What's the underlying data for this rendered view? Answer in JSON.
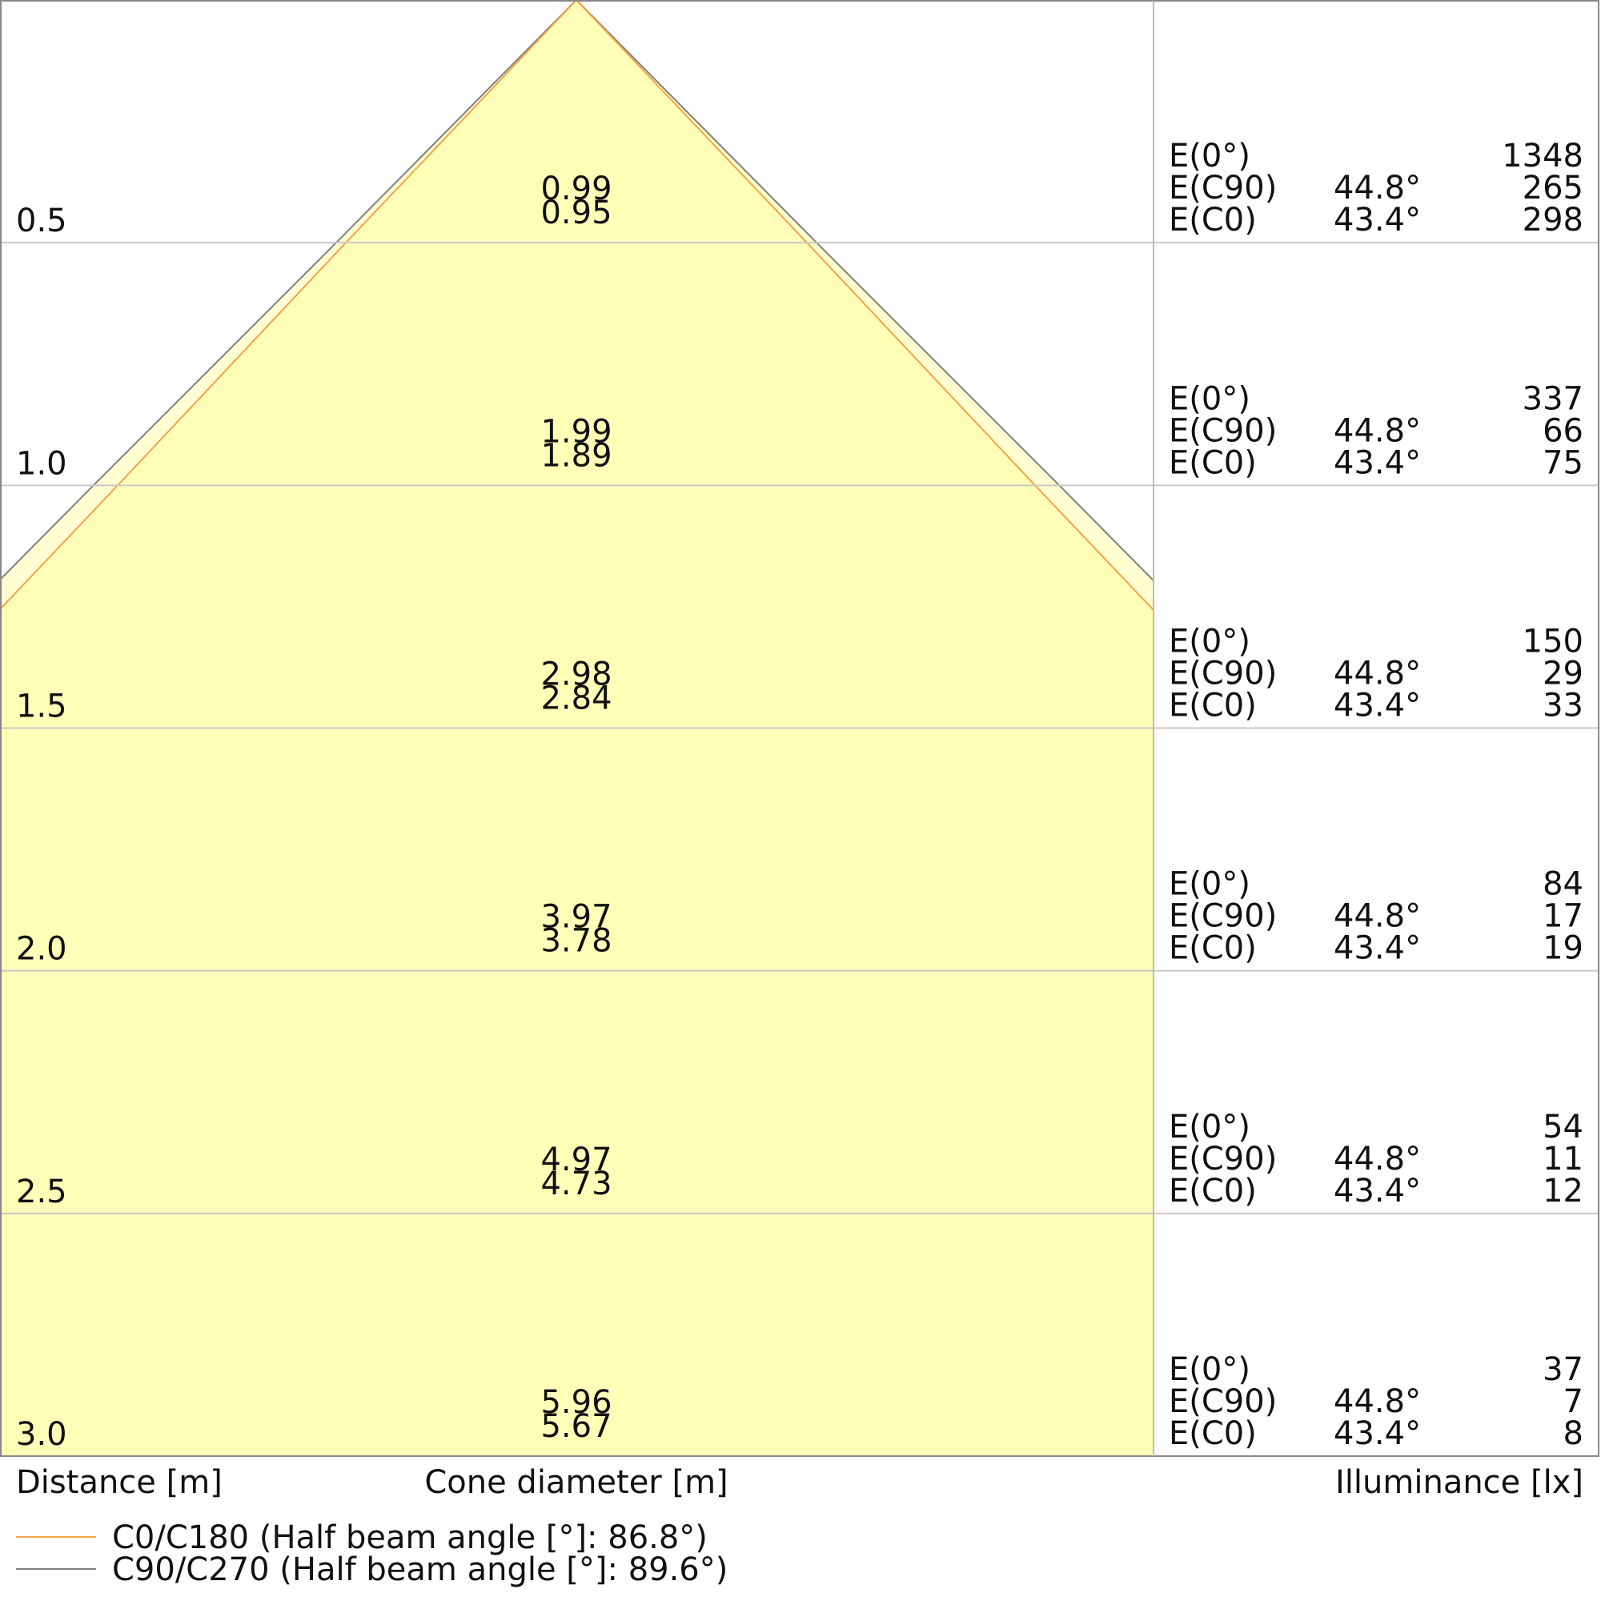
{
  "rows": [
    {
      "distance": "0.5",
      "diameters": [
        "0.99",
        "0.95"
      ],
      "illuminance": [
        {
          "label": "E(0°)",
          "value": "1348"
        },
        {
          "label": "E(C90)",
          "angle": "44.8°",
          "value": "265"
        },
        {
          "label": "E(C0)",
          "angle": "43.4°",
          "value": "298"
        }
      ]
    },
    {
      "distance": "1.0",
      "diameters": [
        "1.99",
        "1.89"
      ],
      "illuminance": [
        {
          "label": "E(0°)",
          "value": "337"
        },
        {
          "label": "E(C90)",
          "angle": "44.8°",
          "value": "66"
        },
        {
          "label": "E(C0)",
          "angle": "43.4°",
          "value": "75"
        }
      ]
    },
    {
      "distance": "1.5",
      "diameters": [
        "2.98",
        "2.84"
      ],
      "illuminance": [
        {
          "label": "E(0°)",
          "value": "150"
        },
        {
          "label": "E(C90)",
          "angle": "44.8°",
          "value": "29"
        },
        {
          "label": "E(C0)",
          "angle": "43.4°",
          "value": "33"
        }
      ]
    },
    {
      "distance": "2.0",
      "diameters": [
        "3.97",
        "3.78"
      ],
      "illuminance": [
        {
          "label": "E(0°)",
          "value": "84"
        },
        {
          "label": "E(C90)",
          "angle": "44.8°",
          "value": "17"
        },
        {
          "label": "E(C0)",
          "angle": "43.4°",
          "value": "19"
        }
      ]
    },
    {
      "distance": "2.5",
      "diameters": [
        "4.97",
        "4.73"
      ],
      "illuminance": [
        {
          "label": "E(0°)",
          "value": "54"
        },
        {
          "label": "E(C90)",
          "angle": "44.8°",
          "value": "11"
        },
        {
          "label": "E(C0)",
          "angle": "43.4°",
          "value": "12"
        }
      ]
    },
    {
      "distance": "3.0",
      "diameters": [
        "5.96",
        "5.67"
      ],
      "illuminance": [
        {
          "label": "E(0°)",
          "value": "37"
        },
        {
          "label": "E(C90)",
          "angle": "44.8°",
          "value": "7"
        },
        {
          "label": "E(C0)",
          "angle": "43.4°",
          "value": "8"
        }
      ]
    }
  ],
  "axis_labels": {
    "distance": "Distance [m]",
    "cone": "Cone diameter [m]",
    "illuminance": "Illuminance [lx]"
  },
  "legend": [
    {
      "name": "C0/C180 (Half beam angle [°]: 86.8°)",
      "color": "#f5a34a"
    },
    {
      "name": "C90/C270 (Half beam angle [°]: 89.6°)",
      "color": "#808080"
    }
  ]
}
